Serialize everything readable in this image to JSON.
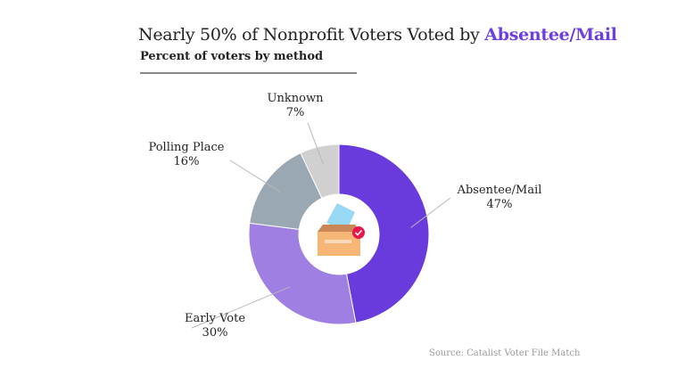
{
  "title": {
    "prefix": "Nearly 50% of Nonprofit Voters Voted by ",
    "highlight": "Absentee/Mail"
  },
  "subtitle": "Percent of voters by method",
  "source": "Source: Catalist Voter File Match",
  "chart_data": {
    "type": "pie",
    "donut": true,
    "title": "Nearly 50% of Nonprofit Voters Voted by Absentee/Mail",
    "subtitle": "Percent of voters by method",
    "categories": [
      "Absentee/Mail",
      "Early Vote",
      "Polling Place",
      "Unknown"
    ],
    "values": [
      47,
      30,
      16,
      7
    ],
    "labels": [
      "47%",
      "30%",
      "16%",
      "7%"
    ],
    "colors": [
      "#6a3bdc",
      "#a07fe3",
      "#9aa8b4",
      "#d0d0d0"
    ],
    "center_icon": "ballot-box-icon"
  }
}
